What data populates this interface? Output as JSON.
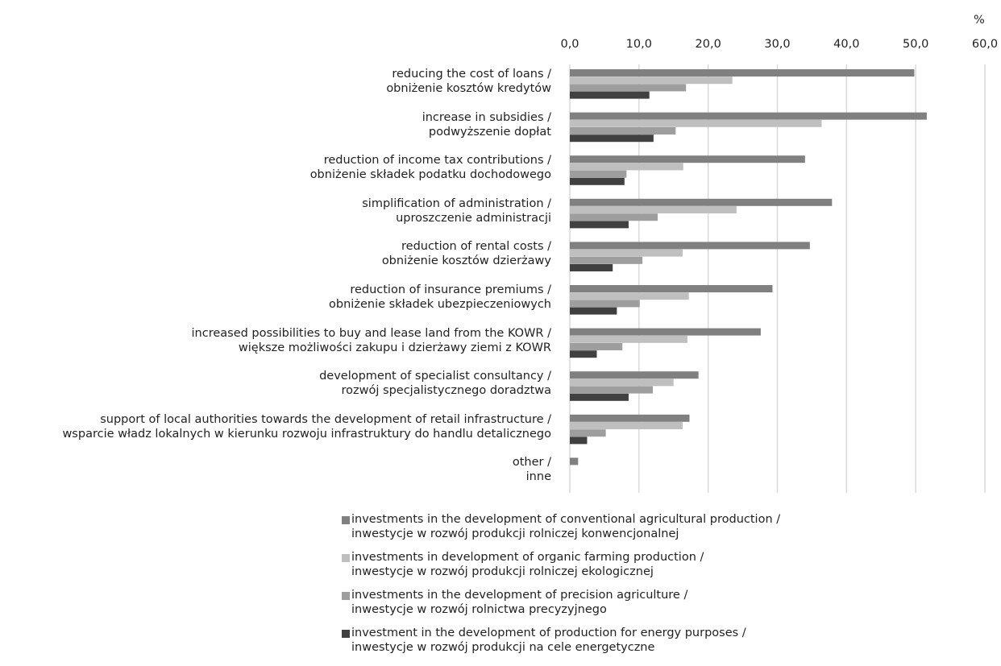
{
  "chart_data": {
    "type": "bar",
    "orientation": "horizontal",
    "unit_label": "%",
    "xlim": [
      0,
      60
    ],
    "x_ticks": [
      "0,0",
      "10,0",
      "20,0",
      "30,0",
      "40,0",
      "50,0",
      "60,0"
    ],
    "x_tick_values": [
      0,
      10,
      20,
      30,
      40,
      50,
      60
    ],
    "grid": true,
    "legend_position": "bottom",
    "categories": [
      [
        "reducing the cost of loans /",
        "obniżenie kosztów kredytów"
      ],
      [
        "increase in subsidies /",
        "podwyższenie dopłat"
      ],
      [
        "reduction of income tax contributions /",
        "obniżenie składek podatku dochodowego"
      ],
      [
        "simplification of administration /",
        "uproszczenie administracji"
      ],
      [
        "reduction of rental costs /",
        "obniżenie kosztów dzierżawy"
      ],
      [
        "reduction of insurance premiums /",
        "obniżenie składek ubezpieczeniowych"
      ],
      [
        "increased possibilities to buy and lease land from the KOWR /",
        "większe możliwości zakupu i dzierżawy ziemi z KOWR"
      ],
      [
        "development of specialist consultancy /",
        "rozwój specjalistycznego doradztwa"
      ],
      [
        "support of local authorities towards the development of retail infrastructure /",
        "wsparcie władz lokalnych w kierunku rozwoju infrastruktury do handlu detalicznego"
      ],
      [
        "other /",
        "inne"
      ]
    ],
    "series": [
      {
        "name": [
          "investments in the development of conventional agricultural production /",
          "inwestycje w rozwój produkcji rolniczej konwencjonalnej"
        ],
        "color": "#808080",
        "values": [
          49.8,
          51.6,
          34.0,
          37.9,
          34.7,
          29.3,
          27.6,
          18.6,
          17.3,
          1.2
        ]
      },
      {
        "name": [
          "investments in development of organic farming production /",
          "inwestycje w rozwój produkcji rolniczej ekologicznej"
        ],
        "color": "#bfbfbf",
        "values": [
          23.5,
          36.4,
          16.4,
          24.1,
          16.3,
          17.2,
          17.0,
          15.0,
          16.3,
          0
        ]
      },
      {
        "name": [
          "investments in the development of precision agriculture /",
          "inwestycje w rozwój rolnictwa precyzyjnego"
        ],
        "color": "#9e9e9e",
        "values": [
          16.8,
          15.3,
          8.2,
          12.7,
          10.5,
          10.1,
          7.6,
          12.0,
          5.2,
          0
        ]
      },
      {
        "name": [
          "investment in the development of production for energy purposes /",
          "inwestycje w rozwój produkcji na cele energetyczne"
        ],
        "color": "#404040",
        "values": [
          11.5,
          12.1,
          7.9,
          8.5,
          6.2,
          6.8,
          3.9,
          8.5,
          2.5,
          0
        ]
      }
    ]
  }
}
